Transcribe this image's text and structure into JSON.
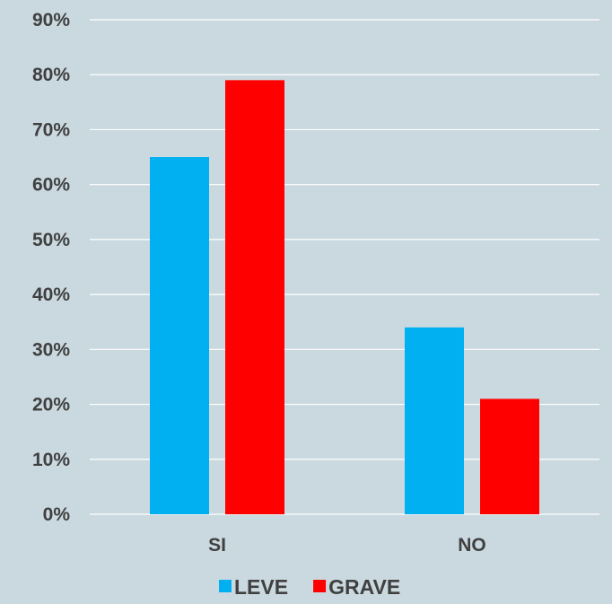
{
  "chart_data": {
    "type": "bar",
    "categories": [
      "SI",
      "NO"
    ],
    "series": [
      {
        "name": "LEVE",
        "values": [
          65,
          34
        ],
        "color": "#00b0f0"
      },
      {
        "name": "GRAVE",
        "values": [
          79,
          21
        ],
        "color": "#ff0000"
      }
    ],
    "yticks": [
      "0%",
      "10%",
      "20%",
      "30%",
      "40%",
      "50%",
      "60%",
      "70%",
      "80%",
      "90%"
    ],
    "ylim": [
      0,
      90
    ],
    "unit": "%",
    "grid": true,
    "legend": "bottom-center",
    "title": "",
    "xlabel": "",
    "ylabel": ""
  },
  "colors": {
    "background": "#cad9df",
    "gridline": "#ffffff",
    "text": "#404040"
  }
}
